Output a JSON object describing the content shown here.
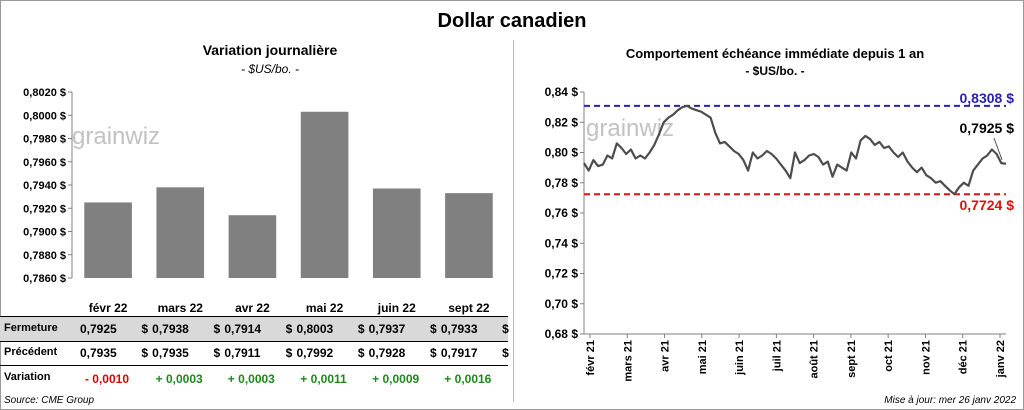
{
  "title": "Dollar canadien",
  "left_chart": {
    "title": "Variation  journalière",
    "unit": "- $US/bo. -",
    "watermark": "grainwiz"
  },
  "right_chart": {
    "title": "Comportement échéance immédiate depuis 1 an",
    "unit": "- $US/bo. -",
    "watermark": "grainwiz",
    "max_label": "0,8308 $",
    "last_label": "0,7925 $",
    "min_label": "0,7724  $"
  },
  "table": {
    "rows": [
      {
        "label": "Fermeture",
        "values": [
          "0,7925",
          "0,7938",
          "0,7914",
          "0,8003",
          "0,7937",
          "0,7933"
        ],
        "currency": "$"
      },
      {
        "label": "Précédent",
        "values": [
          "0,7935",
          "0,7935",
          "0,7911",
          "0,7992",
          "0,7928",
          "0,7917"
        ],
        "currency": "$"
      }
    ],
    "variation": {
      "label": "Variation",
      "values": [
        "- 0,0010",
        "+ 0,0003",
        "+ 0,0003",
        "+ 0,0011",
        "+ 0,0009",
        "+ 0,0016"
      ],
      "colors": [
        "#e00000",
        "#1a8a1a",
        "#1a8a1a",
        "#1a8a1a",
        "#1a8a1a",
        "#1a8a1a"
      ]
    }
  },
  "footer": {
    "source": "Source: CME Group",
    "updated": "Mise à jour: mer 26 janv 2022"
  },
  "colors": {
    "bar": "#808080",
    "line": "#4d4d4d",
    "max_line": "#2b22b4",
    "min_line": "#e01010",
    "row_shade": "#d9d9d9"
  },
  "chart_data": [
    {
      "type": "bar",
      "title": "Variation  journalière",
      "subtitle": "- $US/bo. -",
      "categories": [
        "févr 22",
        "mars 22",
        "avr 22",
        "mai 22",
        "juin 22",
        "sept 22"
      ],
      "values": [
        0.7925,
        0.7938,
        0.7914,
        0.8003,
        0.7937,
        0.7933
      ],
      "ylim": [
        0.786,
        0.802
      ],
      "yticks": [
        "0,7860 $",
        "0,7880 $",
        "0,7900 $",
        "0,7920 $",
        "0,7940 $",
        "0,7960 $",
        "0,7980 $",
        "0,8000 $",
        "0,8020 $"
      ],
      "grid": false,
      "legend": "none"
    },
    {
      "type": "line",
      "title": "Comportement échéance immédiate depuis 1 an",
      "subtitle": "- $US/bo. -",
      "x": [
        0,
        4,
        8,
        12,
        16,
        20,
        24,
        28,
        32,
        36,
        40,
        44,
        48,
        52,
        56,
        60,
        64,
        68,
        72,
        76,
        80,
        84,
        88,
        92,
        96,
        100,
        104,
        108,
        112,
        116,
        120,
        124,
        128,
        132,
        136,
        140,
        144,
        148,
        152,
        156,
        160,
        164,
        168,
        172,
        176,
        180,
        184,
        188,
        192,
        196,
        200,
        204,
        208,
        212,
        216,
        220,
        224,
        228,
        232,
        236,
        240,
        244,
        248,
        252,
        256,
        260,
        264,
        268,
        272,
        276,
        280,
        284,
        288,
        292,
        296,
        300,
        304,
        308,
        312,
        316,
        320,
        324,
        328,
        332,
        336,
        340,
        344,
        348,
        352,
        356,
        360
      ],
      "values": [
        0.793,
        0.788,
        0.795,
        0.791,
        0.792,
        0.798,
        0.796,
        0.806,
        0.803,
        0.799,
        0.802,
        0.796,
        0.798,
        0.796,
        0.8,
        0.805,
        0.812,
        0.82,
        0.823,
        0.825,
        0.828,
        0.83,
        0.8308,
        0.829,
        0.828,
        0.827,
        0.825,
        0.823,
        0.813,
        0.806,
        0.807,
        0.804,
        0.801,
        0.799,
        0.795,
        0.788,
        0.8,
        0.796,
        0.798,
        0.801,
        0.799,
        0.796,
        0.792,
        0.788,
        0.783,
        0.8,
        0.793,
        0.795,
        0.798,
        0.799,
        0.797,
        0.792,
        0.794,
        0.784,
        0.792,
        0.79,
        0.788,
        0.8,
        0.796,
        0.808,
        0.811,
        0.809,
        0.805,
        0.807,
        0.803,
        0.804,
        0.8,
        0.797,
        0.8,
        0.794,
        0.79,
        0.787,
        0.79,
        0.785,
        0.783,
        0.78,
        0.781,
        0.778,
        0.775,
        0.7724,
        0.777,
        0.78,
        0.778,
        0.788,
        0.792,
        0.796,
        0.798,
        0.802,
        0.799,
        0.793,
        0.7925
      ],
      "x_tick_labels": [
        "févr 21",
        "mars 21",
        "avr 21",
        "mai 21",
        "juin 21",
        "juil 21",
        "août 21",
        "sept 21",
        "oct 21",
        "nov 21",
        "déc 21",
        "janv 22"
      ],
      "yticks": [
        "0,68 $",
        "0,70 $",
        "0,72 $",
        "0,74 $",
        "0,76 $",
        "0,78 $",
        "0,80 $",
        "0,82 $",
        "0,84 $"
      ],
      "ylim": [
        0.68,
        0.84
      ],
      "reference_lines": [
        {
          "label": "0,8308 $",
          "value": 0.8308
        },
        {
          "label": "0,7724  $",
          "value": 0.7724
        }
      ],
      "grid": false,
      "legend": "none"
    }
  ]
}
